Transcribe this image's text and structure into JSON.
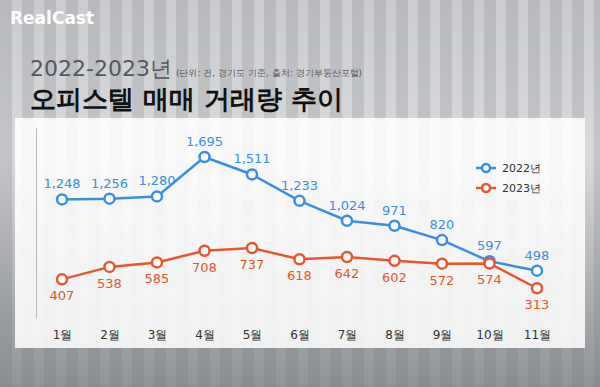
{
  "chart_data": {
    "type": "line",
    "title": "오피스텔 매매 거래량 추이",
    "subtitle": "2022-2023년",
    "annotations": [
      "RealCast",
      "(단위: 건, 경기도 기준, 출처: 경기부동산포털)"
    ],
    "categories": [
      "1월",
      "2월",
      "3월",
      "4월",
      "5월",
      "6월",
      "7월",
      "8월",
      "9월",
      "10월",
      "11월"
    ],
    "series": [
      {
        "name": "2022년",
        "color": "#3a8ee6",
        "marker": "circle",
        "values": [
          1248,
          1256,
          1280,
          1695,
          1511,
          1233,
          1024,
          971,
          820,
          597,
          498
        ],
        "value_labels": [
          "1,248",
          "1,256",
          "1,280",
          "1,695",
          "1,511",
          "1,233",
          "1,024",
          "971",
          "820",
          "597",
          "498"
        ]
      },
      {
        "name": "2023년",
        "color": "#e8552f",
        "marker": "circle",
        "values": [
          407,
          538,
          585,
          708,
          737,
          618,
          642,
          602,
          572,
          574,
          313
        ]
      }
    ],
    "ylim": [
      0,
      2000
    ],
    "yticks": [],
    "tick_labels": "x",
    "grid": false,
    "legend": "upper-right",
    "data_labels": true
  }
}
